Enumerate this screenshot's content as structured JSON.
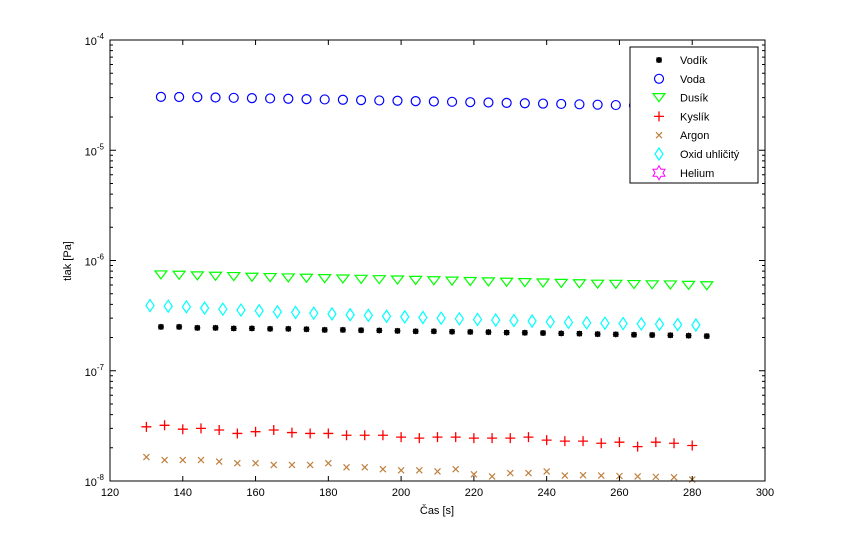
{
  "chart_data": {
    "type": "scatter",
    "title": "",
    "xlabel": "Čas [s]",
    "ylabel": "tlak [Pa]",
    "xlim": [
      120,
      300
    ],
    "ylim": [
      1e-08,
      0.0001
    ],
    "yscale": "log",
    "grid": false,
    "legend_placement": "top-right",
    "xticks": [
      "120",
      "140",
      "160",
      "180",
      "200",
      "220",
      "240",
      "260",
      "280",
      "300"
    ],
    "yticks": [
      {
        "base": "10",
        "exp": "-8"
      },
      {
        "base": "10",
        "exp": "-7"
      },
      {
        "base": "10",
        "exp": "-6"
      },
      {
        "base": "10",
        "exp": "-5"
      },
      {
        "base": "10",
        "exp": "-4"
      }
    ],
    "series": [
      {
        "name": "Vodík",
        "marker": "dot",
        "color": "#000000",
        "x_start": 134,
        "values": [
          2.5e-07,
          2.5e-07,
          2.45e-07,
          2.45e-07,
          2.42e-07,
          2.42e-07,
          2.4e-07,
          2.4e-07,
          2.38e-07,
          2.35e-07,
          2.35e-07,
          2.33e-07,
          2.32e-07,
          2.3e-07,
          2.28e-07,
          2.28e-07,
          2.26e-07,
          2.25e-07,
          2.24e-07,
          2.22e-07,
          2.21e-07,
          2.2e-07,
          2.18e-07,
          2.17e-07,
          2.15e-07,
          2.14e-07,
          2.12e-07,
          2.11e-07,
          2.1e-07,
          2.08e-07,
          2.06e-07
        ]
      },
      {
        "name": "Voda",
        "marker": "circle",
        "color": "#0000ff",
        "x_start": 134,
        "values": [
          3.05e-05,
          3.04e-05,
          3.03e-05,
          3.01e-05,
          2.99e-05,
          2.97e-05,
          2.95e-05,
          2.93e-05,
          2.91e-05,
          2.89e-05,
          2.87e-05,
          2.85e-05,
          2.83e-05,
          2.81e-05,
          2.79e-05,
          2.77e-05,
          2.75e-05,
          2.73e-05,
          2.71e-05,
          2.69e-05,
          2.67e-05,
          2.65e-05,
          2.63e-05,
          2.61e-05,
          2.59e-05,
          2.57e-05,
          2.55e-05,
          2.53e-05,
          2.51e-05,
          2.49e-05,
          2.47e-05
        ]
      },
      {
        "name": "Dusík",
        "marker": "triangle-down",
        "color": "#00ff00",
        "x_start": 134,
        "values": [
          7.4e-07,
          7.35e-07,
          7.25e-07,
          7.2e-07,
          7.15e-07,
          7.05e-07,
          7e-07,
          6.95e-07,
          6.9e-07,
          6.85e-07,
          6.8e-07,
          6.75e-07,
          6.7e-07,
          6.65e-07,
          6.6e-07,
          6.55e-07,
          6.5e-07,
          6.45e-07,
          6.4e-07,
          6.35e-07,
          6.3e-07,
          6.25e-07,
          6.2e-07,
          6.15e-07,
          6.1e-07,
          6.08e-07,
          6.05e-07,
          6.02e-07,
          6e-07,
          5.95e-07,
          5.9e-07
        ]
      },
      {
        "name": "Kyslík",
        "marker": "plus",
        "color": "#ff0000",
        "x_start": 130,
        "values": [
          3.1e-08,
          3.2e-08,
          2.95e-08,
          3e-08,
          2.9e-08,
          2.7e-08,
          2.8e-08,
          2.9e-08,
          2.75e-08,
          2.7e-08,
          2.7e-08,
          2.6e-08,
          2.6e-08,
          2.6e-08,
          2.5e-08,
          2.45e-08,
          2.5e-08,
          2.5e-08,
          2.45e-08,
          2.45e-08,
          2.45e-08,
          2.5e-08,
          2.35e-08,
          2.3e-08,
          2.3e-08,
          2.2e-08,
          2.25e-08,
          2.05e-08,
          2.25e-08,
          2.2e-08,
          2.1e-08
        ]
      },
      {
        "name": "Argon",
        "marker": "x",
        "color": "#c08040",
        "x_start": 130,
        "values": [
          1.65e-08,
          1.55e-08,
          1.55e-08,
          1.55e-08,
          1.5e-08,
          1.45e-08,
          1.45e-08,
          1.4e-08,
          1.4e-08,
          1.4e-08,
          1.45e-08,
          1.33e-08,
          1.33e-08,
          1.28e-08,
          1.25e-08,
          1.25e-08,
          1.22e-08,
          1.28e-08,
          1.15e-08,
          1.1e-08,
          1.18e-08,
          1.18e-08,
          1.22e-08,
          1.12e-08,
          1.13e-08,
          1.12e-08,
          1.11e-08,
          1.1e-08,
          1.09e-08,
          1.08e-08,
          1.03e-08
        ]
      },
      {
        "name": "Oxid uhličitý",
        "marker": "diamond",
        "color": "#00ffff",
        "x_start": 131,
        "values": [
          3.9e-07,
          3.85e-07,
          3.8e-07,
          3.7e-07,
          3.62e-07,
          3.55e-07,
          3.5e-07,
          3.42e-07,
          3.38e-07,
          3.33e-07,
          3.28e-07,
          3.22e-07,
          3.18e-07,
          3.12e-07,
          3.08e-07,
          3.04e-07,
          3e-07,
          2.96e-07,
          2.92e-07,
          2.88e-07,
          2.85e-07,
          2.82e-07,
          2.78e-07,
          2.75e-07,
          2.72e-07,
          2.7e-07,
          2.68e-07,
          2.66e-07,
          2.64e-07,
          2.62e-07,
          2.6e-07
        ]
      },
      {
        "name": "Helium",
        "marker": "hexagram",
        "color": "#ff00ff",
        "x_start": 130,
        "values": []
      }
    ],
    "x_step": 5
  }
}
